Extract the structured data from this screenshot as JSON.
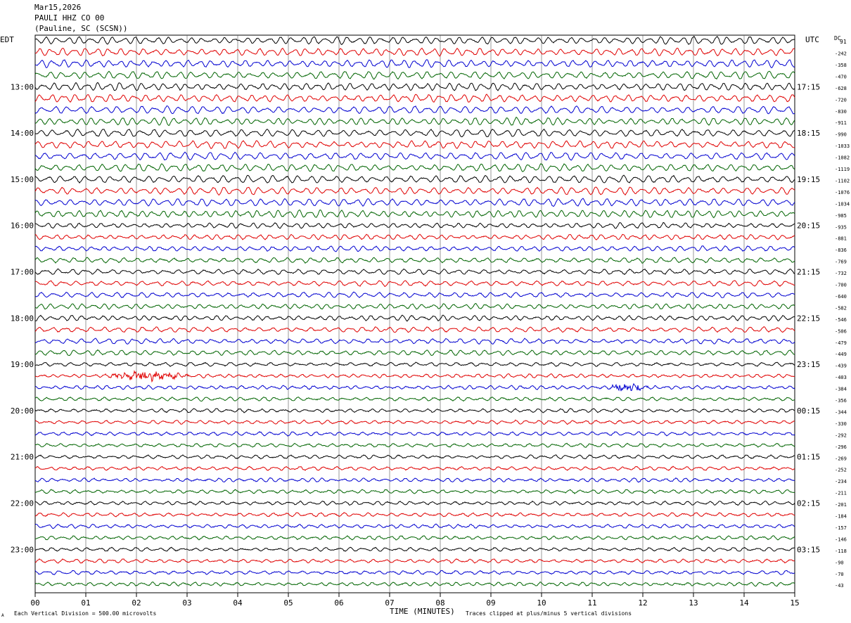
{
  "header": {
    "date": "Mar15,2026",
    "station": "PAULI HHZ CO 00",
    "location": "(Pauline, SC (SCSN))"
  },
  "labels": {
    "left_timezone": "EDT",
    "right_timezone": "UTC",
    "dc_label": "DC",
    "dc_first": "91"
  },
  "footer": {
    "division": "Each Vertical Division =  500.00 microvolts",
    "clip_note": "Traces clipped at plus/minus 5 vertical divisions",
    "corner_mark": "A"
  },
  "chart_data": {
    "type": "helicorder",
    "xlabel": "TIME (MINUTES)",
    "x_ticks": [
      "00",
      "01",
      "02",
      "03",
      "04",
      "05",
      "06",
      "07",
      "08",
      "09",
      "10",
      "11",
      "12",
      "13",
      "14",
      "15"
    ],
    "xlim": [
      0,
      15
    ],
    "rows_per_hour": 4,
    "trace_colors": [
      "#000000",
      "#e00000",
      "#0000d0",
      "#006400"
    ],
    "left_hour_labels": [
      "13:00",
      "14:00",
      "15:00",
      "16:00",
      "17:00",
      "18:00",
      "19:00",
      "20:00",
      "21:00",
      "22:00",
      "23:00"
    ],
    "right_hour_labels": [
      "17:15",
      "18:15",
      "19:15",
      "20:15",
      "21:15",
      "22:15",
      "23:15",
      "00:15",
      "01:15",
      "02:15",
      "03:15"
    ],
    "dc_offsets": [
      "-242",
      "-358",
      "-470",
      "-628",
      "-720",
      "-830",
      "-911",
      "-990",
      "-1033",
      "-1082",
      "-1119",
      "-1102",
      "-1076",
      "-1034",
      "-985",
      "-935",
      "-881",
      "-836",
      "-769",
      "-732",
      "-700",
      "-640",
      "-582",
      "-546",
      "-506",
      "-479",
      "-449",
      "-439",
      "-403",
      "-384",
      "-356",
      "-344",
      "-330",
      "-292",
      "-296",
      "-269",
      "-252",
      "-234",
      "-211",
      "-201",
      "-184",
      "-157",
      "-146",
      "-118",
      "-90",
      "-70",
      "-43"
    ],
    "trace_count": 48,
    "events": [
      {
        "row": 29,
        "start_min": 1.3,
        "end_min": 3.9
      },
      {
        "row": 30,
        "start_min": 11.3,
        "end_min": 12.5
      }
    ]
  }
}
